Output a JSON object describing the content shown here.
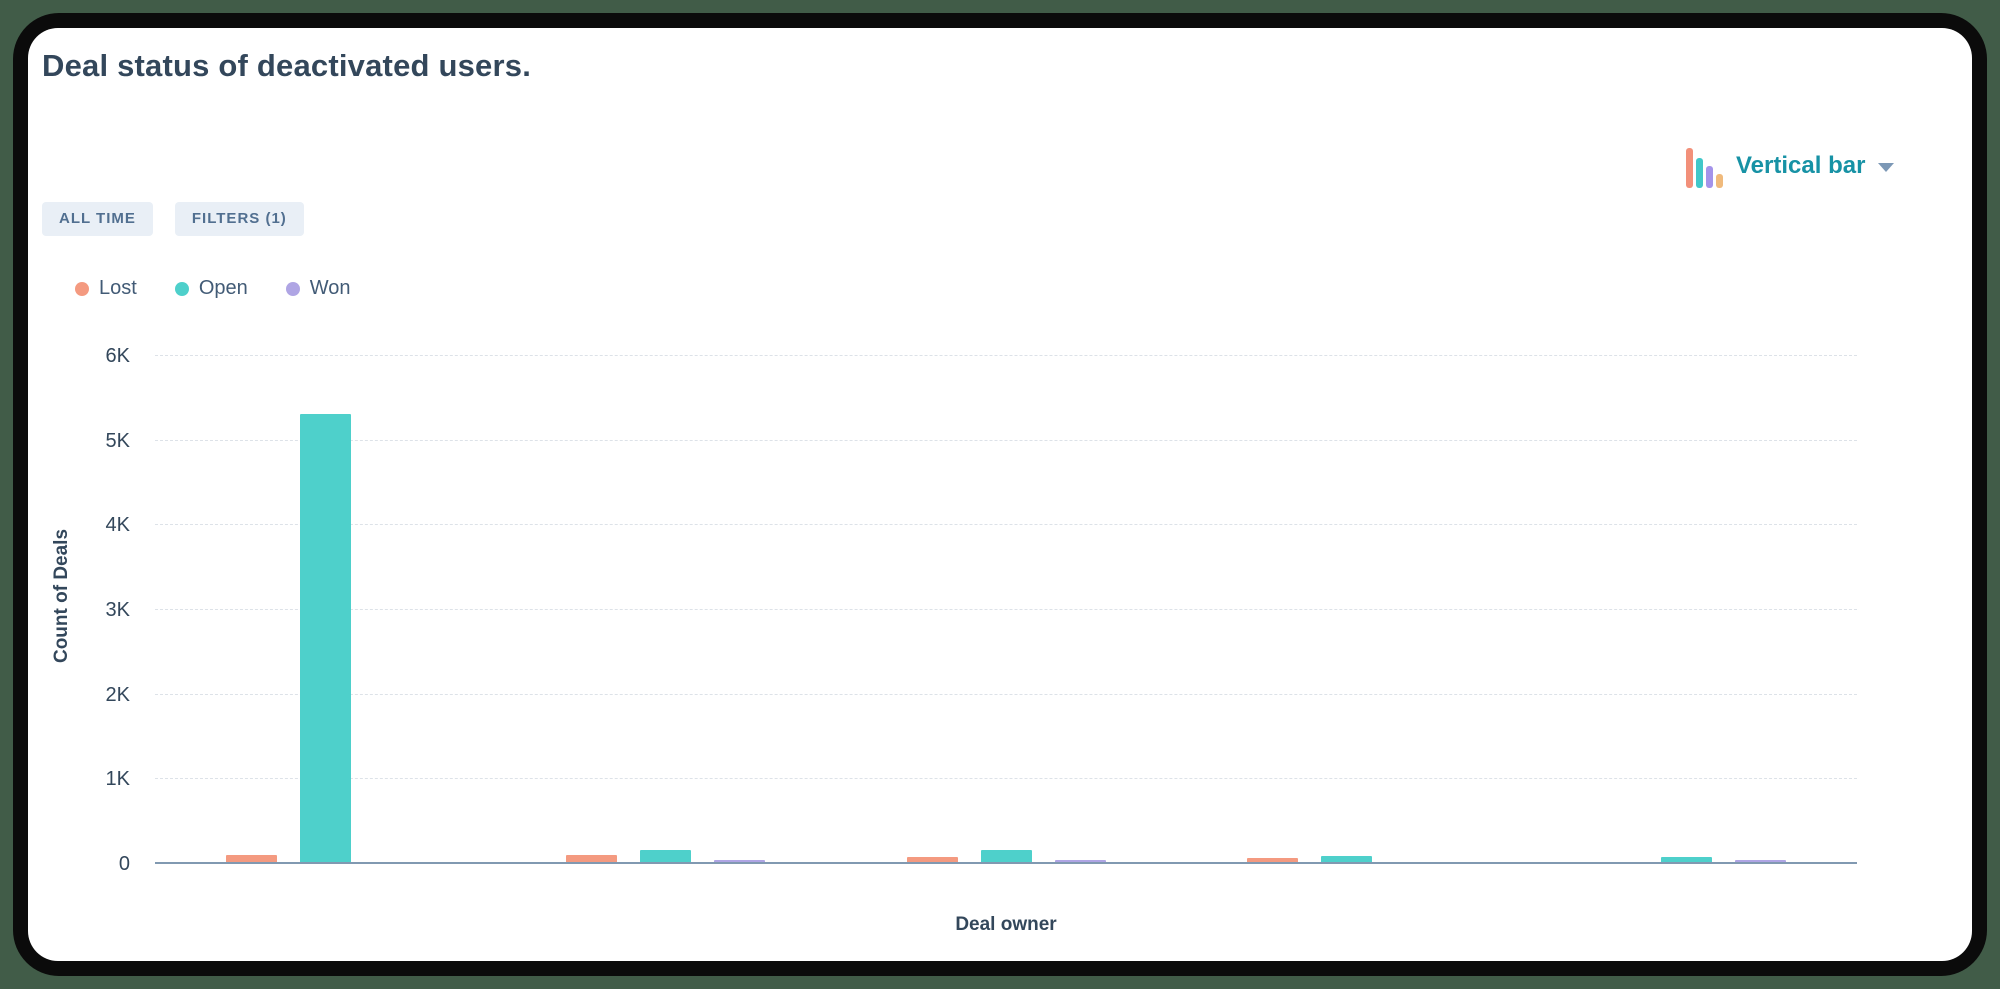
{
  "report": {
    "title": "Deal status of deactivated users."
  },
  "toolbar": {
    "chart_type": {
      "label": "Vertical bar",
      "icon": "bar-chart-icon",
      "icon_bar_colors": [
        "#f2907a",
        "#41c7c9",
        "#a493ea",
        "#f0ba7c"
      ]
    },
    "filters": [
      {
        "label": "ALL TIME"
      },
      {
        "label": "FILTERS (1)"
      }
    ]
  },
  "legend": [
    {
      "label": "Lost",
      "color": "#f49a80"
    },
    {
      "label": "Open",
      "color": "#4ed0cb"
    },
    {
      "label": "Won",
      "color": "#afa5e4"
    }
  ],
  "chart_data": {
    "type": "bar",
    "title": "Deal status of deactivated users.",
    "xlabel": "Deal owner",
    "ylabel": "Count of Deals",
    "categories": [
      "",
      "",
      "",
      "",
      ""
    ],
    "series": [
      {
        "name": "Lost",
        "color": "#f49a80",
        "values": [
          90,
          90,
          70,
          55,
          0
        ]
      },
      {
        "name": "Open",
        "color": "#4ed0cb",
        "values": [
          5300,
          150,
          150,
          85,
          70
        ]
      },
      {
        "name": "Won",
        "color": "#afa5e4",
        "values": [
          0,
          30,
          35,
          0,
          30
        ]
      }
    ],
    "ylim": [
      0,
      6000
    ],
    "yticks": [
      "0",
      "1K",
      "2K",
      "3K",
      "4K",
      "5K",
      "6K"
    ],
    "grid": "horizontal-dashed",
    "legend_position": "top-left"
  },
  "colors": {
    "page_background": "#415c48",
    "frame": "#0b0b0b",
    "card_background": "#ffffff",
    "heading_text": "#33475b",
    "badge_background": "#e9eff6",
    "badge_text": "#516f90",
    "link_teal": "#1792a5",
    "axis_line": "#8199b1",
    "gridline": "#dde2e8"
  }
}
